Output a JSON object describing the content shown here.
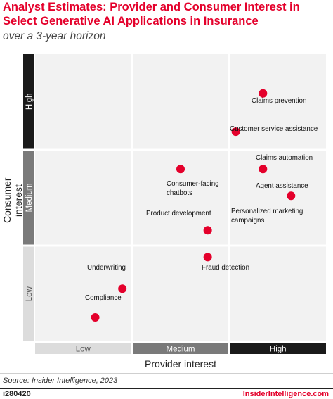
{
  "header": {
    "title": "Analyst Estimates: Provider and Consumer Interest in Select Generative AI Applications in Insurance",
    "subtitle": "over a 3-year horizon"
  },
  "footer": {
    "source": "Source: Insider Intelligence, 2023",
    "chart_id": "i280420",
    "brand": "InsiderIntelligence.com"
  },
  "colors": {
    "accent": "#e4002b",
    "quadrant_bg": "#f2f2f2",
    "band_low": "#dcdcdc",
    "band_medium": "#7a7a7a",
    "band_high": "#1a1a1a"
  },
  "chart_data": {
    "type": "scatter",
    "xlabel": "Provider interest",
    "ylabel": "Consumer interest",
    "x_categories": [
      "Low",
      "Medium",
      "High"
    ],
    "y_categories": [
      "Low",
      "Medium",
      "High"
    ],
    "xlim": [
      0,
      3
    ],
    "ylim": [
      0,
      3
    ],
    "points": [
      {
        "label": "Claims prevention",
        "x": 2.35,
        "y": 2.59
      },
      {
        "label": "Customer service assistance",
        "x": 2.07,
        "y": 2.19
      },
      {
        "label": "Claims automation",
        "x": 2.35,
        "y": 1.8
      },
      {
        "label": "Agent assistance",
        "x": 2.64,
        "y": 1.52
      },
      {
        "label": "Consumer-facing chatbots",
        "x": 1.5,
        "y": 1.8
      },
      {
        "label": "Product development",
        "x": 1.78,
        "y": 1.16
      },
      {
        "label": "Fraud detection",
        "x": 1.78,
        "y": 0.88
      },
      {
        "label": "Underwriting",
        "x": 0.9,
        "y": 0.55
      },
      {
        "label": "Compliance",
        "x": 0.62,
        "y": 0.25
      }
    ],
    "labels": {
      "claims_prevention": "Claims prevention",
      "customer_service": "Customer service assistance",
      "claims_automation": "Claims automation",
      "agent_assistance": "Agent assistance",
      "personalized_marketing_1": "Personalized marketing",
      "personalized_marketing_2": "campaigns",
      "chatbots_1": "Consumer-facing",
      "chatbots_2": "chatbots",
      "product_development": "Product development",
      "fraud_detection": "Fraud detection",
      "underwriting": "Underwriting",
      "compliance": "Compliance"
    }
  }
}
